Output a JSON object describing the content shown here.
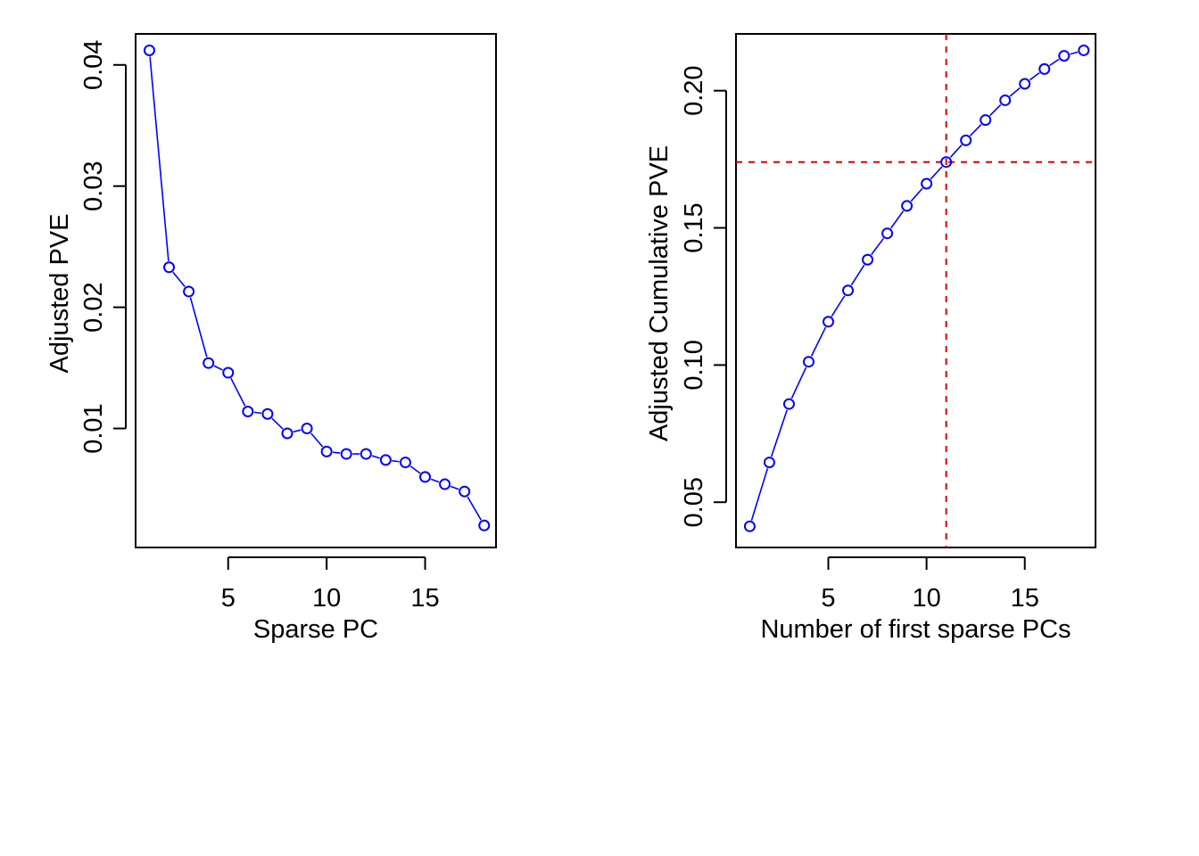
{
  "colors": {
    "series": "#0000ff",
    "reference": "#dd0000",
    "axis": "#000000"
  },
  "chart_data": [
    {
      "type": "line",
      "markers": "open-circle",
      "xlabel": "Sparse PC",
      "ylabel": "Adjusted PVE",
      "xlim": [
        0.3,
        18.6
      ],
      "ylim": [
        0.00018,
        0.04256
      ],
      "xticks": [
        5,
        10,
        15
      ],
      "yticks": [
        0.01,
        0.02,
        0.03,
        0.04
      ],
      "xtick_labels": [
        "5",
        "10",
        "15"
      ],
      "ytick_labels": [
        "0.01",
        "0.02",
        "0.03",
        "0.04"
      ],
      "x": [
        1,
        2,
        3,
        4,
        5,
        6,
        7,
        8,
        9,
        10,
        11,
        12,
        13,
        14,
        15,
        16,
        17,
        18
      ],
      "y": [
        0.0412,
        0.0233,
        0.0213,
        0.0154,
        0.0146,
        0.0114,
        0.0112,
        0.0096,
        0.01,
        0.0081,
        0.0079,
        0.0079,
        0.0074,
        0.0072,
        0.006,
        0.0054,
        0.0048,
        0.002
      ]
    },
    {
      "type": "line",
      "markers": "open-circle",
      "xlabel": "Number of first sparse PCs",
      "ylabel": "Adjusted Cumulative PVE",
      "xlim": [
        0.3,
        18.6
      ],
      "ylim": [
        0.0335,
        0.2207
      ],
      "xticks": [
        5,
        10,
        15
      ],
      "yticks": [
        0.05,
        0.1,
        0.15,
        0.2
      ],
      "xtick_labels": [
        "5",
        "10",
        "15"
      ],
      "ytick_labels": [
        "0.05",
        "0.10",
        "0.15",
        "0.20"
      ],
      "x": [
        1,
        2,
        3,
        4,
        5,
        6,
        7,
        8,
        9,
        10,
        11,
        12,
        13,
        14,
        15,
        16,
        17,
        18
      ],
      "y": [
        0.0412,
        0.0645,
        0.0858,
        0.1012,
        0.1158,
        0.1272,
        0.1384,
        0.148,
        0.158,
        0.1661,
        0.174,
        0.1819,
        0.1893,
        0.1965,
        0.2025,
        0.2079,
        0.2127,
        0.2147
      ],
      "reference_lines": {
        "vline_x": 11,
        "hline_y": 0.174
      }
    }
  ]
}
